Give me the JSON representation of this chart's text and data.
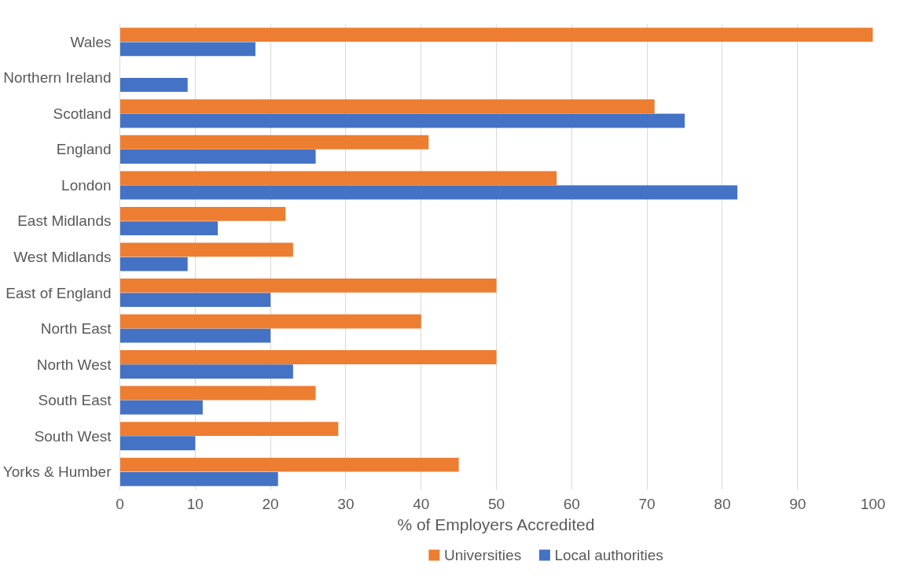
{
  "chart_data": {
    "type": "bar",
    "orientation": "horizontal",
    "xlabel": "% of Employers Accredited",
    "categories": [
      "Wales",
      "Northern Ireland",
      "Scotland",
      "England",
      "London",
      "East Midlands",
      "West Midlands",
      "East of England",
      "North East",
      "North West",
      "South East",
      "South West",
      "Yorks & Humber"
    ],
    "series": [
      {
        "name": "Universities",
        "color": "#ed7d31",
        "values": [
          100,
          0,
          71,
          41,
          58,
          22,
          23,
          50,
          40,
          50,
          26,
          29,
          45
        ]
      },
      {
        "name": "Local authorities",
        "color": "#4472c4",
        "values": [
          18,
          9,
          75,
          26,
          82,
          13,
          9,
          20,
          20,
          23,
          11,
          10,
          21
        ]
      }
    ],
    "xlim": [
      0,
      100
    ],
    "xticks": [
      0,
      10,
      20,
      30,
      40,
      50,
      60,
      70,
      80,
      90,
      100
    ],
    "grid": "x",
    "legend": "bottom"
  }
}
